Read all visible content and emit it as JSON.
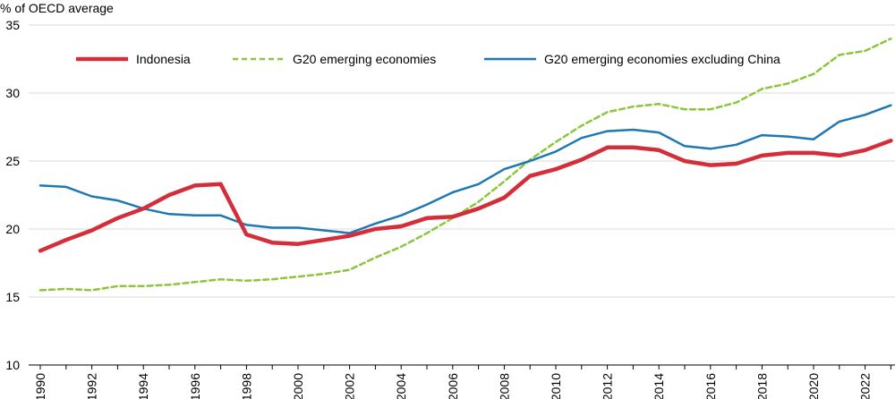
{
  "chart_data": {
    "type": "line",
    "title": "",
    "ylabel": "% of OECD average",
    "xlabel": "",
    "ylim": [
      10,
      35
    ],
    "yticks": [
      10,
      15,
      20,
      25,
      30,
      35
    ],
    "xlim": [
      1990,
      2023
    ],
    "x": [
      1990,
      1991,
      1992,
      1993,
      1994,
      1995,
      1996,
      1997,
      1998,
      1999,
      2000,
      2001,
      2002,
      2003,
      2004,
      2005,
      2006,
      2007,
      2008,
      2009,
      2010,
      2011,
      2012,
      2013,
      2014,
      2015,
      2016,
      2017,
      2018,
      2019,
      2020,
      2021,
      2022,
      2023
    ],
    "xtick_labels": [
      "1990",
      "1992",
      "1994",
      "1996",
      "1998",
      "2000",
      "2002",
      "2004",
      "2006",
      "2008",
      "2010",
      "2012",
      "2014",
      "2016",
      "2018",
      "2020",
      "2022"
    ],
    "grid": "horizontal",
    "legend_position": "top",
    "series": [
      {
        "name": "Indonesia",
        "color": "#d42e3a",
        "style": "solid",
        "values": [
          18.4,
          19.2,
          19.9,
          20.8,
          21.5,
          22.5,
          23.2,
          23.3,
          19.6,
          19.0,
          18.9,
          19.2,
          19.5,
          20.0,
          20.2,
          20.8,
          20.9,
          21.5,
          22.3,
          23.9,
          24.4,
          25.1,
          26.0,
          26.0,
          25.8,
          25.0,
          24.7,
          24.8,
          25.4,
          25.6,
          25.6,
          25.4,
          25.8,
          26.5
        ]
      },
      {
        "name": "G20 emerging economies",
        "color": "#8cc63e",
        "style": "dashed",
        "values": [
          15.5,
          15.6,
          15.5,
          15.8,
          15.8,
          15.9,
          16.1,
          16.3,
          16.2,
          16.3,
          16.5,
          16.7,
          17.0,
          17.9,
          18.7,
          19.7,
          20.8,
          22.0,
          23.5,
          25.1,
          26.4,
          27.6,
          28.6,
          29.0,
          29.2,
          28.8,
          28.8,
          29.3,
          30.3,
          30.7,
          31.4,
          32.8,
          33.1,
          34.0
        ]
      },
      {
        "name": "G20 emerging economies excluding China",
        "color": "#1f77b4",
        "style": "solid",
        "values": [
          23.2,
          23.1,
          22.4,
          22.1,
          21.5,
          21.1,
          21.0,
          21.0,
          20.3,
          20.1,
          20.1,
          19.9,
          19.7,
          20.4,
          21.0,
          21.8,
          22.7,
          23.3,
          24.4,
          25.0,
          25.7,
          26.7,
          27.2,
          27.3,
          27.1,
          26.1,
          25.9,
          26.2,
          26.9,
          26.8,
          26.6,
          27.9,
          28.4,
          29.1
        ]
      }
    ]
  }
}
